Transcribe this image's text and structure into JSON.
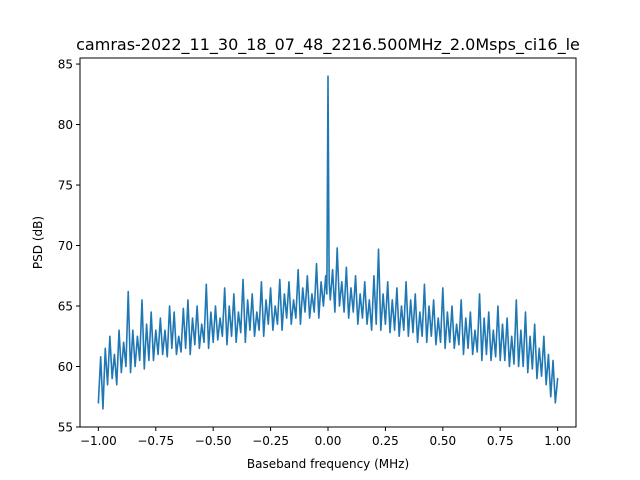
{
  "chart_data": {
    "type": "line",
    "title": "camras-2022_11_30_18_07_48_2216.500MHz_2.0Msps_ci16_le",
    "xlabel": "Baseband frequency (MHz)",
    "ylabel": "PSD (dB)",
    "xlim": [
      -1.08,
      1.08
    ],
    "ylim": [
      55,
      85.5
    ],
    "x_ticks": [
      -1.0,
      -0.75,
      -0.5,
      -0.25,
      0.0,
      0.25,
      0.5,
      0.75,
      1.0
    ],
    "x_tick_labels": [
      "−1.00",
      "−0.75",
      "−0.50",
      "−0.25",
      "0.00",
      "0.25",
      "0.50",
      "0.75",
      "1.00"
    ],
    "y_ticks": [
      55,
      60,
      65,
      70,
      75,
      80,
      85
    ],
    "y_tick_labels": [
      "55",
      "60",
      "65",
      "70",
      "75",
      "80",
      "85"
    ],
    "grid": false,
    "series": [
      {
        "color": "#1f77b4",
        "points": [
          [
            -1.0,
            57.0
          ],
          [
            -0.99,
            60.8
          ],
          [
            -0.98,
            56.5
          ],
          [
            -0.97,
            61.5
          ],
          [
            -0.96,
            58.5
          ],
          [
            -0.95,
            62.5
          ],
          [
            -0.94,
            59.0
          ],
          [
            -0.93,
            61.0
          ],
          [
            -0.92,
            58.5
          ],
          [
            -0.91,
            63.0
          ],
          [
            -0.9,
            59.5
          ],
          [
            -0.89,
            62.0
          ],
          [
            -0.88,
            60.0
          ],
          [
            -0.87,
            66.2
          ],
          [
            -0.86,
            59.5
          ],
          [
            -0.85,
            63.0
          ],
          [
            -0.84,
            60.0
          ],
          [
            -0.83,
            62.5
          ],
          [
            -0.82,
            60.5
          ],
          [
            -0.81,
            65.5
          ],
          [
            -0.8,
            59.8
          ],
          [
            -0.79,
            63.5
          ],
          [
            -0.78,
            60.5
          ],
          [
            -0.77,
            64.5
          ],
          [
            -0.76,
            60.5
          ],
          [
            -0.75,
            63.0
          ],
          [
            -0.74,
            61.0
          ],
          [
            -0.73,
            64.0
          ],
          [
            -0.72,
            61.0
          ],
          [
            -0.71,
            63.0
          ],
          [
            -0.7,
            60.8
          ],
          [
            -0.69,
            65.0
          ],
          [
            -0.68,
            61.5
          ],
          [
            -0.67,
            64.5
          ],
          [
            -0.66,
            61.0
          ],
          [
            -0.65,
            62.5
          ],
          [
            -0.64,
            61.2
          ],
          [
            -0.63,
            64.8
          ],
          [
            -0.62,
            61.5
          ],
          [
            -0.61,
            65.5
          ],
          [
            -0.6,
            61.0
          ],
          [
            -0.59,
            64.0
          ],
          [
            -0.58,
            61.8
          ],
          [
            -0.57,
            65.0
          ],
          [
            -0.56,
            61.5
          ],
          [
            -0.55,
            63.5
          ],
          [
            -0.54,
            62.0
          ],
          [
            -0.53,
            66.8
          ],
          [
            -0.52,
            61.5
          ],
          [
            -0.51,
            64.5
          ],
          [
            -0.5,
            62.0
          ],
          [
            -0.49,
            65.0
          ],
          [
            -0.48,
            62.2
          ],
          [
            -0.47,
            64.0
          ],
          [
            -0.46,
            62.5
          ],
          [
            -0.45,
            66.5
          ],
          [
            -0.44,
            61.8
          ],
          [
            -0.43,
            65.0
          ],
          [
            -0.42,
            62.5
          ],
          [
            -0.41,
            66.0
          ],
          [
            -0.4,
            62.0
          ],
          [
            -0.39,
            64.5
          ],
          [
            -0.38,
            62.8
          ],
          [
            -0.37,
            67.2
          ],
          [
            -0.36,
            62.0
          ],
          [
            -0.35,
            65.5
          ],
          [
            -0.34,
            63.0
          ],
          [
            -0.33,
            66.0
          ],
          [
            -0.32,
            62.5
          ],
          [
            -0.31,
            64.5
          ],
          [
            -0.3,
            63.0
          ],
          [
            -0.29,
            67.0
          ],
          [
            -0.28,
            62.5
          ],
          [
            -0.27,
            65.5
          ],
          [
            -0.26,
            63.5
          ],
          [
            -0.25,
            66.5
          ],
          [
            -0.24,
            63.0
          ],
          [
            -0.23,
            65.0
          ],
          [
            -0.22,
            63.5
          ],
          [
            -0.21,
            67.2
          ],
          [
            -0.2,
            63.0
          ],
          [
            -0.19,
            66.0
          ],
          [
            -0.18,
            64.0
          ],
          [
            -0.17,
            67.0
          ],
          [
            -0.16,
            63.5
          ],
          [
            -0.15,
            65.5
          ],
          [
            -0.14,
            64.0
          ],
          [
            -0.13,
            68.0
          ],
          [
            -0.12,
            63.5
          ],
          [
            -0.11,
            66.5
          ],
          [
            -0.1,
            64.5
          ],
          [
            -0.09,
            67.5
          ],
          [
            -0.08,
            64.0
          ],
          [
            -0.07,
            66.0
          ],
          [
            -0.06,
            64.5
          ],
          [
            -0.05,
            68.5
          ],
          [
            -0.04,
            64.0
          ],
          [
            -0.03,
            67.0
          ],
          [
            -0.02,
            65.0
          ],
          [
            -0.01,
            67.5
          ],
          [
            -0.005,
            66.0
          ],
          [
            0.0,
            84.0
          ],
          [
            0.005,
            67.0
          ],
          [
            0.01,
            65.5
          ],
          [
            0.02,
            68.0
          ],
          [
            0.03,
            64.5
          ],
          [
            0.04,
            69.8
          ],
          [
            0.05,
            65.0
          ],
          [
            0.06,
            67.0
          ],
          [
            0.07,
            64.5
          ],
          [
            0.08,
            68.2
          ],
          [
            0.09,
            64.0
          ],
          [
            0.1,
            66.5
          ],
          [
            0.11,
            64.5
          ],
          [
            0.12,
            67.5
          ],
          [
            0.13,
            63.5
          ],
          [
            0.14,
            66.0
          ],
          [
            0.15,
            64.0
          ],
          [
            0.16,
            67.0
          ],
          [
            0.17,
            63.5
          ],
          [
            0.18,
            65.5
          ],
          [
            0.19,
            63.0
          ],
          [
            0.2,
            67.5
          ],
          [
            0.21,
            63.5
          ],
          [
            0.22,
            69.7
          ],
          [
            0.23,
            63.0
          ],
          [
            0.24,
            66.0
          ],
          [
            0.25,
            63.5
          ],
          [
            0.26,
            67.0
          ],
          [
            0.27,
            62.8
          ],
          [
            0.28,
            65.5
          ],
          [
            0.29,
            63.0
          ],
          [
            0.3,
            66.5
          ],
          [
            0.31,
            62.5
          ],
          [
            0.32,
            65.0
          ],
          [
            0.33,
            63.0
          ],
          [
            0.34,
            67.0
          ],
          [
            0.35,
            62.5
          ],
          [
            0.36,
            65.5
          ],
          [
            0.37,
            62.8
          ],
          [
            0.38,
            66.0
          ],
          [
            0.39,
            62.0
          ],
          [
            0.4,
            64.5
          ],
          [
            0.41,
            62.5
          ],
          [
            0.42,
            66.8
          ],
          [
            0.43,
            62.0
          ],
          [
            0.44,
            65.0
          ],
          [
            0.45,
            62.5
          ],
          [
            0.46,
            65.5
          ],
          [
            0.47,
            61.8
          ],
          [
            0.48,
            64.0
          ],
          [
            0.49,
            62.0
          ],
          [
            0.5,
            66.5
          ],
          [
            0.51,
            61.5
          ],
          [
            0.52,
            64.5
          ],
          [
            0.53,
            62.0
          ],
          [
            0.54,
            65.0
          ],
          [
            0.55,
            61.5
          ],
          [
            0.56,
            63.5
          ],
          [
            0.57,
            61.8
          ],
          [
            0.58,
            65.5
          ],
          [
            0.59,
            61.0
          ],
          [
            0.6,
            64.0
          ],
          [
            0.61,
            61.5
          ],
          [
            0.62,
            64.5
          ],
          [
            0.63,
            61.0
          ],
          [
            0.64,
            63.0
          ],
          [
            0.65,
            61.2
          ],
          [
            0.66,
            66.0
          ],
          [
            0.67,
            60.5
          ],
          [
            0.68,
            64.0
          ],
          [
            0.69,
            61.0
          ],
          [
            0.7,
            64.5
          ],
          [
            0.71,
            60.5
          ],
          [
            0.72,
            63.0
          ],
          [
            0.73,
            60.8
          ],
          [
            0.74,
            65.0
          ],
          [
            0.75,
            60.5
          ],
          [
            0.76,
            63.5
          ],
          [
            0.77,
            60.5
          ],
          [
            0.78,
            64.0
          ],
          [
            0.79,
            60.0
          ],
          [
            0.8,
            62.5
          ],
          [
            0.81,
            60.2
          ],
          [
            0.82,
            65.5
          ],
          [
            0.83,
            60.0
          ],
          [
            0.84,
            63.0
          ],
          [
            0.85,
            60.0
          ],
          [
            0.86,
            64.5
          ],
          [
            0.87,
            59.5
          ],
          [
            0.88,
            62.5
          ],
          [
            0.89,
            59.8
          ],
          [
            0.9,
            63.5
          ],
          [
            0.91,
            59.0
          ],
          [
            0.92,
            61.5
          ],
          [
            0.93,
            59.2
          ],
          [
            0.94,
            62.5
          ],
          [
            0.95,
            58.5
          ],
          [
            0.96,
            61.0
          ],
          [
            0.97,
            57.5
          ],
          [
            0.98,
            60.5
          ],
          [
            0.99,
            57.0
          ],
          [
            1.0,
            59.0
          ]
        ]
      }
    ]
  }
}
